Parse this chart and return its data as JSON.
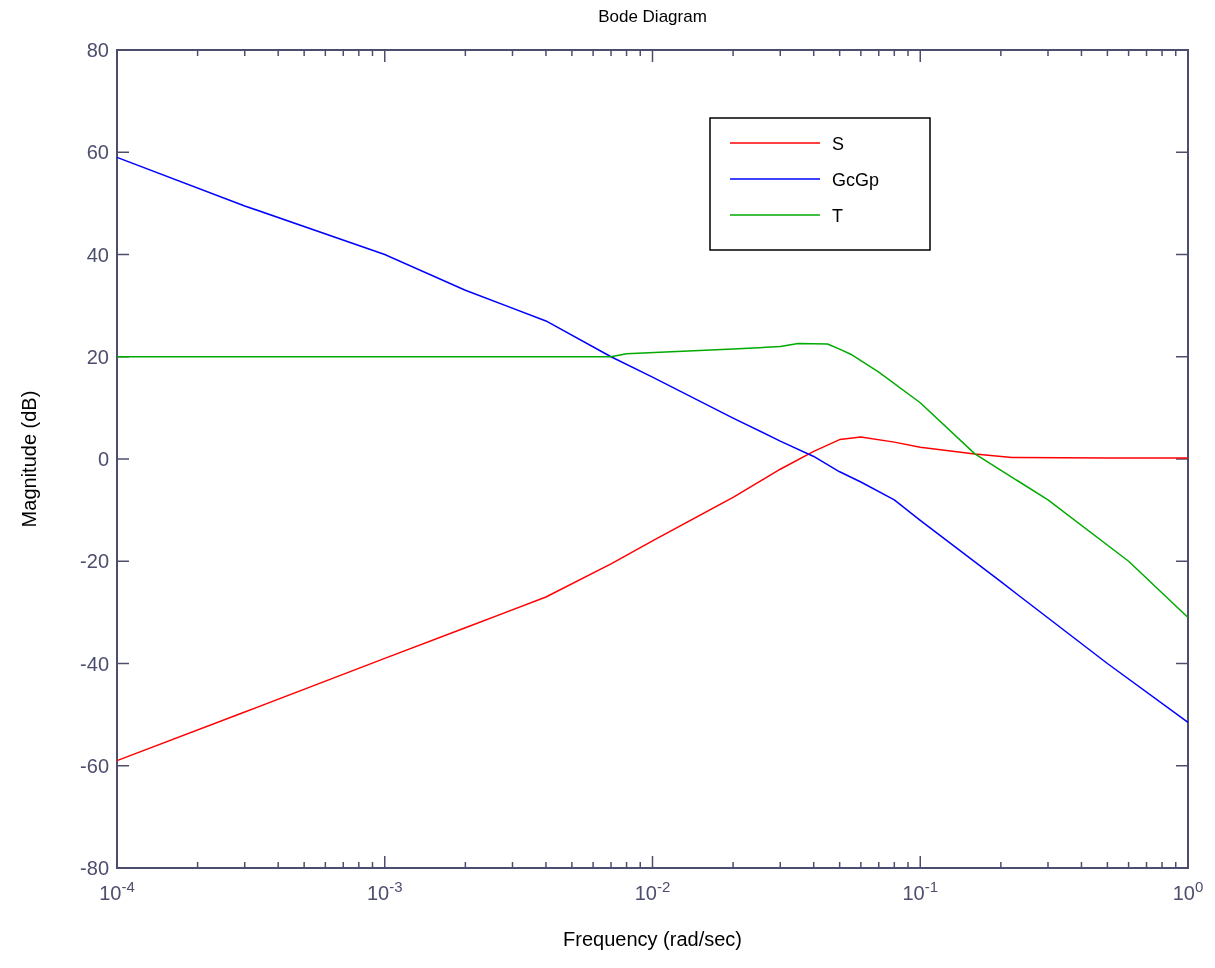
{
  "chart_data": {
    "type": "line",
    "title": "Bode Diagram",
    "xlabel": "Frequency  (rad/sec)",
    "ylabel": "Magnitude (dB)",
    "log": "x",
    "legend": "top right",
    "grid": false,
    "xlim": [
      0.0001,
      1
    ],
    "ylim": [
      -80,
      80
    ],
    "yticks": [
      -80,
      -60,
      -40,
      -20,
      0,
      20,
      40,
      60,
      80
    ],
    "xticks": [
      {
        "value": 0.0001,
        "label": "10$^{-4}$"
      },
      {
        "value": 0.0002,
        "label": null
      },
      {
        "value": 0.0003,
        "label": null
      },
      {
        "value": 0.0004,
        "label": null
      },
      {
        "value": 0.0005,
        "label": null
      },
      {
        "value": 0.0006,
        "label": null
      },
      {
        "value": 0.0007,
        "label": null
      },
      {
        "value": 0.0008,
        "label": null
      },
      {
        "value": 0.0009,
        "label": null
      },
      {
        "value": 0.001,
        "label": "10$^{-3}$"
      },
      {
        "value": 0.002,
        "label": null
      },
      {
        "value": 0.003,
        "label": null
      },
      {
        "value": 0.004,
        "label": null
      },
      {
        "value": 0.005,
        "label": null
      },
      {
        "value": 0.006,
        "label": null
      },
      {
        "value": 0.007,
        "label": null
      },
      {
        "value": 0.008,
        "label": null
      },
      {
        "value": 0.009,
        "label": null
      },
      {
        "value": 0.01,
        "label": "10$^{-2}$"
      },
      {
        "value": 0.02,
        "label": null
      },
      {
        "value": 0.03,
        "label": null
      },
      {
        "value": 0.04,
        "label": null
      },
      {
        "value": 0.05,
        "label": null
      },
      {
        "value": 0.06,
        "label": null
      },
      {
        "value": 0.07,
        "label": null
      },
      {
        "value": 0.08,
        "label": null
      },
      {
        "value": 0.09,
        "label": null
      },
      {
        "value": 0.1,
        "label": "10$^{-1}$"
      },
      {
        "value": 0.2,
        "label": null
      },
      {
        "value": 0.3,
        "label": null
      },
      {
        "value": 0.4,
        "label": null
      },
      {
        "value": 0.5,
        "label": null
      },
      {
        "value": 0.6,
        "label": null
      },
      {
        "value": 0.7,
        "label": null
      },
      {
        "value": 0.8,
        "label": null
      },
      {
        "value": 0.9,
        "label": null
      },
      {
        "value": 1,
        "label": "10$^{0}$"
      }
    ],
    "series": [
      {
        "name": "S",
        "color": "#ff0000",
        "x": [
          0.0001,
          0.0003,
          0.001,
          0.002,
          0.004,
          0.007,
          0.01,
          0.02,
          0.03,
          0.04,
          0.05,
          0.06,
          0.08,
          0.1,
          0.16,
          0.22,
          0.5,
          1
        ],
        "values": [
          -59,
          -49.5,
          -39,
          -33,
          -27,
          -20.5,
          -16,
          -7.5,
          -2,
          1.5,
          3.8,
          4.3,
          3.3,
          2.3,
          1,
          0.3,
          0.2,
          0.2
        ]
      },
      {
        "name": "GcGp",
        "color": "#0000ff",
        "x": [
          0.0001,
          0.0003,
          0.001,
          0.002,
          0.004,
          0.007,
          0.01,
          0.02,
          0.03,
          0.04,
          0.05,
          0.06,
          0.08,
          0.1,
          0.2,
          0.5,
          1
        ],
        "values": [
          59,
          49.5,
          40,
          33,
          27,
          20,
          16,
          8,
          3.5,
          0.5,
          -2.5,
          -4.5,
          -8,
          -12,
          -24,
          -40,
          -51.5
        ]
      },
      {
        "name": "T",
        "color": "#00aa00",
        "x": [
          0.0001,
          0.001,
          0.007,
          0.008,
          0.02,
          0.03,
          0.035,
          0.045,
          0.05,
          0.055,
          0.07,
          0.1,
          0.16,
          0.3,
          0.6,
          1
        ],
        "values": [
          20,
          20,
          20,
          20.6,
          21.5,
          22,
          22.6,
          22.5,
          21.5,
          20.5,
          17,
          11,
          1,
          -8,
          -20,
          -31
        ]
      }
    ]
  }
}
